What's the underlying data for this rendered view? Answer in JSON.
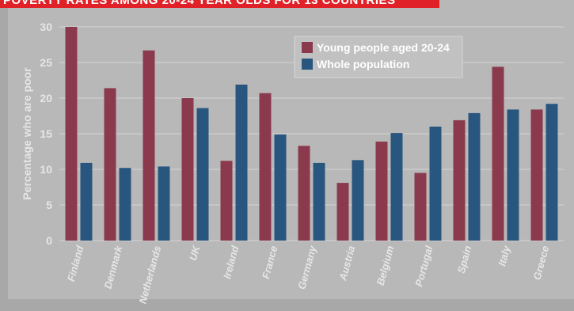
{
  "chart_data": {
    "type": "bar",
    "title": "POVERTY RATES AMONG 20-24 YEAR OLDS FOR 13 COUNTRIES",
    "ylabel": "Percentage who are poor",
    "xlabel": "",
    "ylim": [
      0,
      30
    ],
    "yticks": [
      0,
      5,
      10,
      15,
      20,
      25,
      30
    ],
    "grid": true,
    "legend_position": "top-center",
    "categories": [
      "Finland",
      "Denmark",
      "Netherlands",
      "UK",
      "Ireland",
      "France",
      "Germany",
      "Austria",
      "Belgium",
      "Portugal",
      "Spain",
      "Italy",
      "Greece"
    ],
    "series": [
      {
        "name": "Young people aged 20-24",
        "color": "#8b3a4d",
        "values": [
          30,
          21.4,
          26.7,
          20.0,
          11.2,
          20.7,
          13.3,
          8.1,
          13.9,
          9.5,
          16.9,
          24.4,
          18.4
        ]
      },
      {
        "name": "Whole population",
        "color": "#29567e",
        "values": [
          10.9,
          10.2,
          10.4,
          18.6,
          21.9,
          14.9,
          10.9,
          11.3,
          15.1,
          16.0,
          17.9,
          18.4,
          19.2
        ]
      }
    ]
  }
}
